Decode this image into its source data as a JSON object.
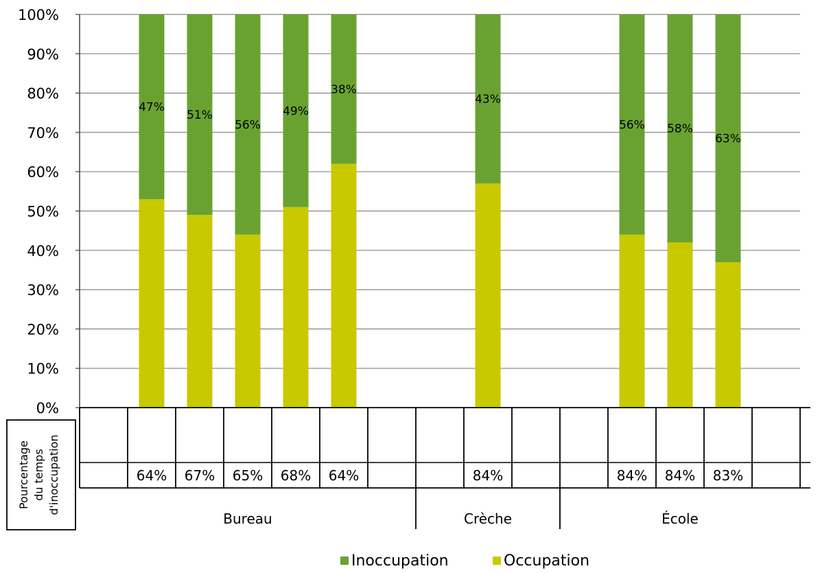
{
  "chart_data": {
    "type": "bar",
    "stacked": true,
    "percent_stacked": true,
    "row_header": "Pourcentage du temps d'inoccupation",
    "row_header_lines": [
      "Pourcentage",
      "du temps",
      "d'inoccupation"
    ],
    "categories": [
      {
        "group": "Bureau",
        "table_value": "",
        "label": ""
      },
      {
        "group": "Bureau",
        "table_value": "64%",
        "label": "47%"
      },
      {
        "group": "Bureau",
        "table_value": "67%",
        "label": "51%"
      },
      {
        "group": "Bureau",
        "table_value": "65%",
        "label": "56%"
      },
      {
        "group": "Bureau",
        "table_value": "68%",
        "label": "49%"
      },
      {
        "group": "Bureau",
        "table_value": "64%",
        "label": "38%"
      },
      {
        "group": "Bureau",
        "table_value": "",
        "label": ""
      },
      {
        "group": "Crèche",
        "table_value": "",
        "label": ""
      },
      {
        "group": "Crèche",
        "table_value": "84%",
        "label": "43%"
      },
      {
        "group": "Crèche",
        "table_value": "",
        "label": ""
      },
      {
        "group": "École",
        "table_value": "",
        "label": ""
      },
      {
        "group": "École",
        "table_value": "84%",
        "label": "56%"
      },
      {
        "group": "École",
        "table_value": "84%",
        "label": "58%"
      },
      {
        "group": "École",
        "table_value": "83%",
        "label": "63%"
      },
      {
        "group": "École",
        "table_value": "",
        "label": ""
      }
    ],
    "groups": [
      {
        "name": "Bureau",
        "count": 7
      },
      {
        "name": "Crèche",
        "count": 3
      },
      {
        "name": "École",
        "count": 5
      }
    ],
    "series": [
      {
        "name": "Occupation",
        "color": "#c9c900",
        "values": [
          null,
          53,
          49,
          44,
          51,
          62,
          null,
          null,
          57,
          null,
          null,
          44,
          42,
          37,
          null
        ]
      },
      {
        "name": "Inoccupation",
        "color": "#6aa232",
        "values": [
          null,
          47,
          51,
          56,
          49,
          38,
          null,
          null,
          43,
          null,
          null,
          56,
          58,
          63,
          null
        ]
      }
    ],
    "yticks": [
      "0%",
      "10%",
      "20%",
      "30%",
      "40%",
      "50%",
      "60%",
      "70%",
      "80%",
      "90%",
      "100%"
    ],
    "ylim": [
      0,
      100
    ],
    "grid": true,
    "legend_position": "bottom",
    "legend": [
      {
        "name": "Inoccupation",
        "color": "#6aa232"
      },
      {
        "name": "Occupation",
        "color": "#c9c900"
      }
    ]
  }
}
